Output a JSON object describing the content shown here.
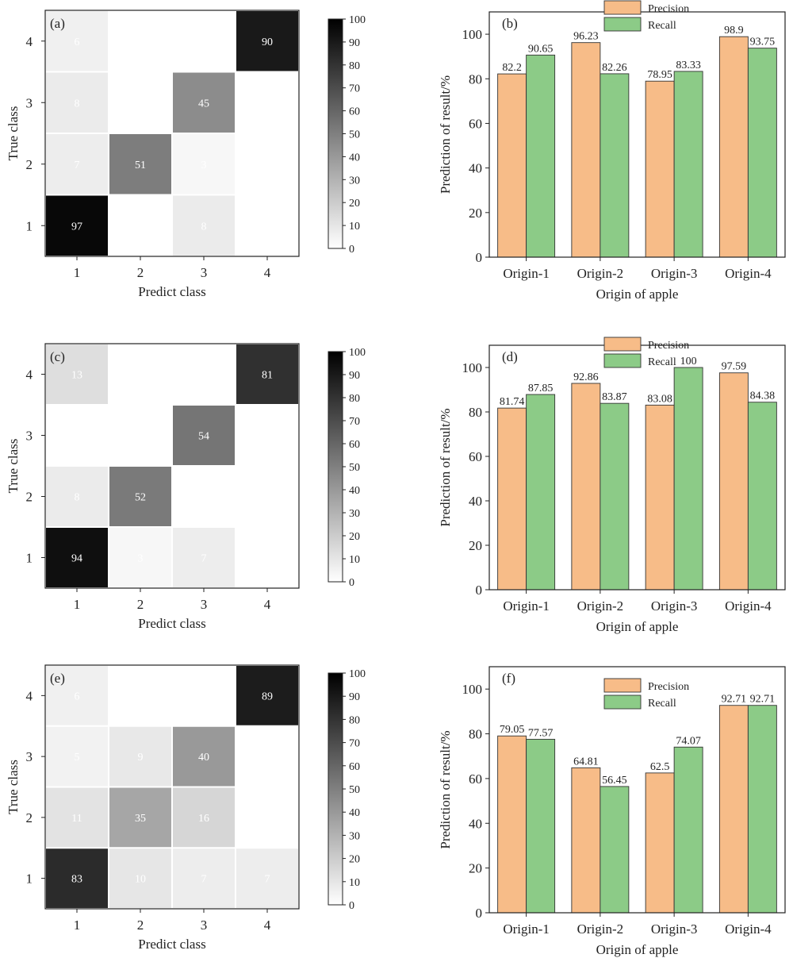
{
  "chart_data": [
    {
      "type": "heatmap",
      "panel_label": "(a)",
      "xlabel": "Predict class",
      "ylabel": "True class",
      "x_categories": [
        "1",
        "2",
        "3",
        "4"
      ],
      "y_categories": [
        "1",
        "2",
        "3",
        "4"
      ],
      "cells": [
        {
          "true": "4",
          "pred": "1",
          "value": 6
        },
        {
          "true": "4",
          "pred": "4",
          "value": 90
        },
        {
          "true": "3",
          "pred": "1",
          "value": 8
        },
        {
          "true": "3",
          "pred": "3",
          "value": 45
        },
        {
          "true": "2",
          "pred": "1",
          "value": 7
        },
        {
          "true": "2",
          "pred": "2",
          "value": 51
        },
        {
          "true": "2",
          "pred": "3",
          "value": 3
        },
        {
          "true": "1",
          "pred": "1",
          "value": 97
        },
        {
          "true": "1",
          "pred": "3",
          "value": 8
        }
      ],
      "colorbar": {
        "min": 0,
        "max": 100,
        "ticks": [
          "0",
          "10",
          "20",
          "30",
          "40",
          "50",
          "60",
          "70",
          "80",
          "90",
          "100"
        ],
        "low_color": "#ffffff",
        "high_color": "#000000"
      }
    },
    {
      "type": "bar",
      "panel_label": "(b)",
      "categories": [
        "Origin-1",
        "Origin-2",
        "Origin-3",
        "Origin-4"
      ],
      "series": [
        {
          "name": "Precision",
          "color": "#f7bc88",
          "values": [
            82.2,
            96.23,
            78.95,
            98.9
          ],
          "labels": [
            "82.2",
            "96.23",
            "78.95",
            "98.9"
          ]
        },
        {
          "name": "Recall",
          "color": "#8ccb87",
          "values": [
            90.65,
            82.26,
            83.33,
            93.75
          ],
          "labels": [
            "90.65",
            "82.26",
            "83.33",
            "93.75"
          ]
        }
      ],
      "xlabel": "Origin of apple",
      "ylabel": "Prediction of result/%",
      "ylim": [
        0,
        110
      ],
      "yticks": [
        "0",
        "20",
        "40",
        "60",
        "80",
        "100"
      ],
      "legend": "top-center"
    },
    {
      "type": "heatmap",
      "panel_label": "(c)",
      "xlabel": "Predict class",
      "ylabel": "True class",
      "x_categories": [
        "1",
        "2",
        "3",
        "4"
      ],
      "y_categories": [
        "1",
        "2",
        "3",
        "4"
      ],
      "cells": [
        {
          "true": "4",
          "pred": "1",
          "value": 13
        },
        {
          "true": "4",
          "pred": "4",
          "value": 81
        },
        {
          "true": "3",
          "pred": "3",
          "value": 54
        },
        {
          "true": "2",
          "pred": "1",
          "value": 8
        },
        {
          "true": "2",
          "pred": "2",
          "value": 52
        },
        {
          "true": "1",
          "pred": "1",
          "value": 94
        },
        {
          "true": "1",
          "pred": "2",
          "value": 3
        },
        {
          "true": "1",
          "pred": "3",
          "value": 7
        }
      ],
      "colorbar": {
        "min": 0,
        "max": 100,
        "ticks": [
          "0",
          "10",
          "20",
          "30",
          "40",
          "50",
          "60",
          "70",
          "80",
          "90",
          "100"
        ],
        "low_color": "#ffffff",
        "high_color": "#000000"
      }
    },
    {
      "type": "bar",
      "panel_label": "(d)",
      "categories": [
        "Origin-1",
        "Origin-2",
        "Origin-3",
        "Origin-4"
      ],
      "series": [
        {
          "name": "Precision",
          "color": "#f7bc88",
          "values": [
            81.74,
            92.86,
            83.08,
            97.59
          ],
          "labels": [
            "81.74",
            "92.86",
            "83.08",
            "97.59"
          ]
        },
        {
          "name": "Recall",
          "color": "#8ccb87",
          "values": [
            87.85,
            83.87,
            100,
            84.38
          ],
          "labels": [
            "87.85",
            "83.87",
            "100",
            "84.38"
          ]
        }
      ],
      "xlabel": "Origin of apple",
      "ylabel": "Prediction of result/%",
      "ylim": [
        0,
        110
      ],
      "yticks": [
        "0",
        "20",
        "40",
        "60",
        "80",
        "100"
      ],
      "legend": "top-center"
    },
    {
      "type": "heatmap",
      "panel_label": "(e)",
      "xlabel": "Predict class",
      "ylabel": "True class",
      "x_categories": [
        "1",
        "2",
        "3",
        "4"
      ],
      "y_categories": [
        "1",
        "2",
        "3",
        "4"
      ],
      "cells": [
        {
          "true": "4",
          "pred": "1",
          "value": 6
        },
        {
          "true": "4",
          "pred": "4",
          "value": 89
        },
        {
          "true": "3",
          "pred": "1",
          "value": 5
        },
        {
          "true": "3",
          "pred": "2",
          "value": 9
        },
        {
          "true": "3",
          "pred": "3",
          "value": 40
        },
        {
          "true": "2",
          "pred": "1",
          "value": 11
        },
        {
          "true": "2",
          "pred": "2",
          "value": 35
        },
        {
          "true": "2",
          "pred": "3",
          "value": 16
        },
        {
          "true": "1",
          "pred": "1",
          "value": 83
        },
        {
          "true": "1",
          "pred": "2",
          "value": 10
        },
        {
          "true": "1",
          "pred": "3",
          "value": 7
        },
        {
          "true": "1",
          "pred": "4",
          "value": 7
        }
      ],
      "colorbar": {
        "min": 0,
        "max": 100,
        "ticks": [
          "0",
          "10",
          "20",
          "30",
          "40",
          "50",
          "60",
          "70",
          "80",
          "90",
          "100"
        ],
        "low_color": "#ffffff",
        "high_color": "#000000"
      }
    },
    {
      "type": "bar",
      "panel_label": "(f)",
      "categories": [
        "Origin-1",
        "Origin-2",
        "Origin-3",
        "Origin-4"
      ],
      "series": [
        {
          "name": "Precision",
          "color": "#f7bc88",
          "values": [
            79.05,
            64.81,
            62.5,
            92.71
          ],
          "labels": [
            "79.05",
            "64.81",
            "62.5",
            "92.71"
          ]
        },
        {
          "name": "Recall",
          "color": "#8ccb87",
          "values": [
            77.57,
            56.45,
            74.07,
            92.71
          ],
          "labels": [
            "77.57",
            "56.45",
            "74.07",
            "92.71"
          ]
        }
      ],
      "xlabel": "Origin of apple",
      "ylabel": "Prediction of result/%",
      "ylim": [
        0,
        110
      ],
      "yticks": [
        "0",
        "20",
        "40",
        "60",
        "80",
        "100"
      ],
      "legend": "upper-center"
    }
  ]
}
